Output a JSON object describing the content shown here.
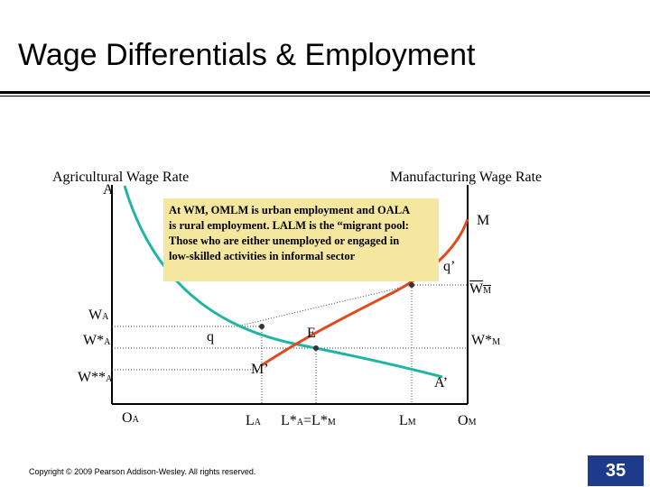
{
  "slide": {
    "title": "Wage Differentials & Employment",
    "copyright": "Copyright © 2009 Pearson Addison-Wesley. All rights reserved.",
    "page_number": "35"
  },
  "diagram": {
    "axis_titles": {
      "left": "Agricultural Wage Rate",
      "right": "Manufacturing Wage Rate"
    },
    "curve_labels": {
      "agri_start": "A",
      "agri_end": "A’",
      "manu_start": "M",
      "manu_lower": "M’"
    },
    "point_labels": {
      "q": "q",
      "q_prime": "q’",
      "E": "E"
    },
    "wage_labels": {
      "wa": "W",
      "wa_sub": "A",
      "wa_star": "W*",
      "wa_star_sub": "A",
      "wa_2star": "W**",
      "wa_2star_sub": "A",
      "wm_bar": "W",
      "wm_bar_sub": "M",
      "wm_star": "W*",
      "wm_star_sub": "M"
    },
    "x_labels": {
      "oa": "O",
      "oa_sub": "A",
      "la": "L",
      "la_sub": "A",
      "l_star": "L*",
      "l_star_sub1": "A",
      "l_star_eq": "=L*",
      "l_star_sub2": "M",
      "lm": "L",
      "lm_sub": "M",
      "om": "O",
      "om_sub": "M"
    },
    "callout": {
      "line1": "At WM, OMLM is urban employment and OALA",
      "line2": "is rural employment. LALM is the “migrant pool:",
      "line3": "Those who are either unemployed or engaged in",
      "line4": "low-skilled activities in informal sector"
    },
    "colors": {
      "agri_curve": "#1fb5a5",
      "manu_curve": "#e04a1c",
      "axis": "#000000",
      "callout_bg": "#f5e7a0",
      "page_badge": "#1e3a8a"
    }
  }
}
